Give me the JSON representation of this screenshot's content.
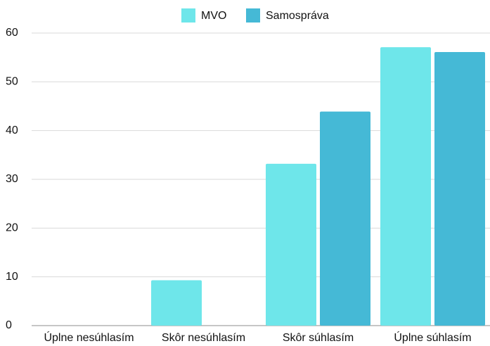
{
  "chart_data": {
    "type": "bar",
    "categories": [
      "Úplne nesúhlasím",
      "Skôr nesúhlasím",
      "Skôr súhlasím",
      "Úplne súhlasím"
    ],
    "series": [
      {
        "name": "MVO",
        "color": "#6ee6ea",
        "values": [
          0,
          9.3,
          33.2,
          57.1
        ]
      },
      {
        "name": "Samospráva",
        "color": "#45b9d6",
        "values": [
          0,
          0,
          43.9,
          56.1
        ]
      }
    ],
    "ylim": [
      0,
      60
    ],
    "yticks": [
      0,
      10,
      20,
      30,
      40,
      50,
      60
    ],
    "grid": true,
    "legend": "top"
  }
}
